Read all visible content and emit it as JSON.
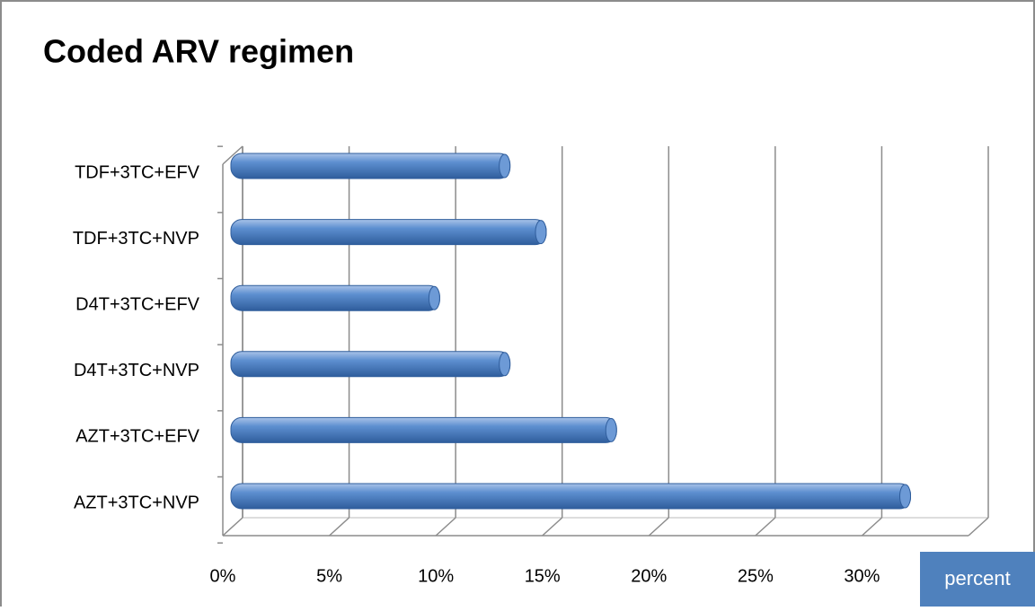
{
  "chart_data": {
    "type": "bar",
    "orientation": "horizontal",
    "title": "Coded ARV regimen",
    "categories": [
      "TDF+3TC+EFV",
      "TDF+3TC+NVP",
      "D4T+3TC+EFV",
      "D4T+3TC+NVP",
      "AZT+3TC+EFV",
      "AZT+3TC+NVP"
    ],
    "values": [
      13.1,
      14.8,
      9.8,
      13.1,
      18.1,
      31.9
    ],
    "color": "#4f81bd",
    "xlim": [
      0,
      35
    ],
    "xticks": [
      {
        "value": 0,
        "label": "0%"
      },
      {
        "value": 5,
        "label": "5%"
      },
      {
        "value": 10,
        "label": "10%"
      },
      {
        "value": 15,
        "label": "15%"
      },
      {
        "value": 20,
        "label": "20%"
      },
      {
        "value": 25,
        "label": "25%"
      },
      {
        "value": 30,
        "label": "30%"
      }
    ],
    "x_label": "percent",
    "grid": true
  }
}
